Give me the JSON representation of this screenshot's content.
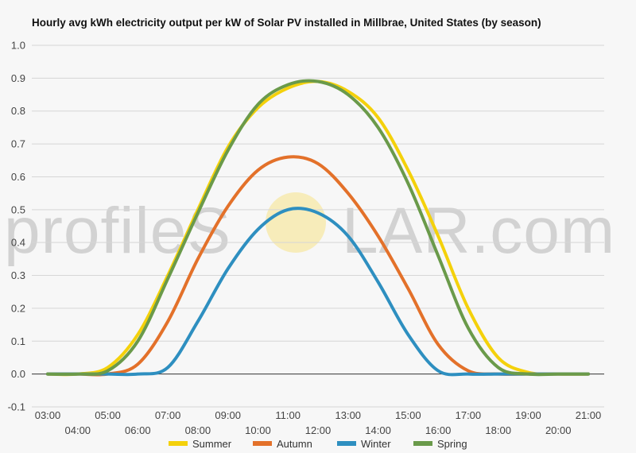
{
  "chart_data": {
    "type": "line",
    "title": "Hourly avg kWh electricity output per kW of Solar PV installed in Millbrae, United States (by season)",
    "xlabel": "",
    "ylabel": "",
    "ylim": [
      -0.1,
      1.0
    ],
    "yticks": [
      "-0.1",
      "0.0",
      "0.1",
      "0.2",
      "0.3",
      "0.4",
      "0.5",
      "0.6",
      "0.7",
      "0.8",
      "0.9",
      "1.0"
    ],
    "categories": [
      "03:00",
      "04:00",
      "05:00",
      "06:00",
      "07:00",
      "08:00",
      "09:00",
      "10:00",
      "11:00",
      "12:00",
      "13:00",
      "14:00",
      "15:00",
      "16:00",
      "17:00",
      "18:00",
      "19:00",
      "20:00",
      "21:00"
    ],
    "grid": true,
    "legend_position": "bottom",
    "series": [
      {
        "name": "Summer",
        "color": "#f4d10b",
        "values": [
          0,
          0,
          0.02,
          0.12,
          0.3,
          0.5,
          0.69,
          0.81,
          0.87,
          0.89,
          0.86,
          0.78,
          0.62,
          0.42,
          0.2,
          0.05,
          0.005,
          0,
          0
        ]
      },
      {
        "name": "Autumn",
        "color": "#e3712a",
        "values": [
          0,
          0,
          0,
          0.03,
          0.16,
          0.35,
          0.51,
          0.62,
          0.66,
          0.64,
          0.55,
          0.42,
          0.26,
          0.09,
          0.01,
          0,
          0,
          0,
          0
        ]
      },
      {
        "name": "Winter",
        "color": "#2e8fc0",
        "values": [
          0,
          0,
          0,
          0,
          0.02,
          0.16,
          0.32,
          0.44,
          0.5,
          0.49,
          0.42,
          0.28,
          0.12,
          0.01,
          0,
          0,
          0,
          0,
          0
        ]
      },
      {
        "name": "Spring",
        "color": "#6a9a4a",
        "values": [
          0,
          0,
          0.01,
          0.1,
          0.29,
          0.49,
          0.68,
          0.82,
          0.88,
          0.89,
          0.85,
          0.75,
          0.58,
          0.36,
          0.14,
          0.02,
          0,
          0,
          0
        ]
      }
    ]
  },
  "watermark": {
    "left": "profileS",
    "right": "LAR.com",
    "sun_color": "#f7e8a6"
  }
}
